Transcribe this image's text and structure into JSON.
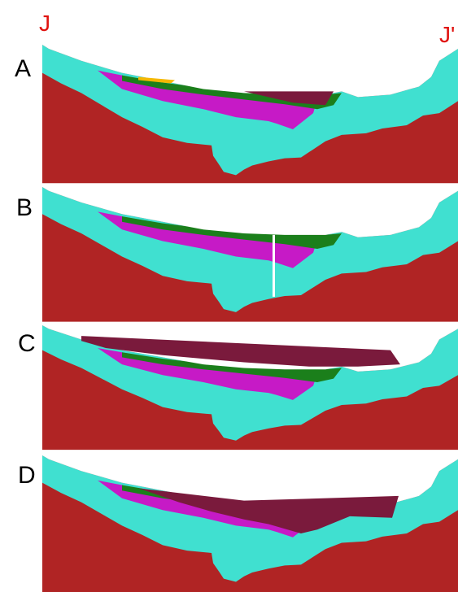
{
  "section": {
    "start": "J",
    "end": "J'"
  },
  "panels": [
    {
      "label": "A"
    },
    {
      "label": "B"
    },
    {
      "label": "C"
    },
    {
      "label": "D"
    }
  ]
}
